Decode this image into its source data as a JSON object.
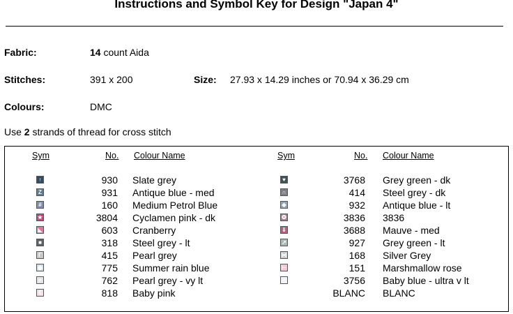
{
  "title": "Instructions and Symbol Key for Design \"Japan 4\"",
  "fabric": {
    "label": "Fabric:",
    "count": "14",
    "rest": "count Aida"
  },
  "stitches": {
    "label": "Stitches:",
    "value": "391 x 200"
  },
  "size": {
    "label": "Size:",
    "value": "27.93 x 14.29 inches or 70.94 x 36.29 cm"
  },
  "colours": {
    "label": "Colours:",
    "value": "DMC"
  },
  "instruction": {
    "prefix": "Use",
    "strands": "2",
    "suffix": "strands of thread for cross stitch"
  },
  "key": {
    "headers": {
      "sym": "Sym",
      "no": "No.",
      "name": "Colour Name"
    },
    "left": [
      {
        "no": "930",
        "name": "Slate grey",
        "icon": "slate-grey-symbol",
        "bg": "#2f4e66",
        "glyph": "↑"
      },
      {
        "no": "931",
        "name": "Antique blue -  med",
        "icon": "antique-blue-symbol",
        "bg": "#5b7d98",
        "glyph": "Z"
      },
      {
        "no": "160",
        "name": "Medium Petrol Blue",
        "icon": "petrol-blue-symbol",
        "bg": "#7f8eb3",
        "glyph": "#"
      },
      {
        "no": "3804",
        "name": "Cyclamen pink -  dk",
        "icon": "cyclamen-pink-symbol",
        "bg": "#d23f7a",
        "glyph": "★"
      },
      {
        "no": "603",
        "name": "Cranberry",
        "icon": "cranberry-symbol",
        "bg": "#e7709d",
        "glyph": "◣"
      },
      {
        "no": "318",
        "name": "Steel grey -  lt",
        "icon": "steel-grey-lt-symbol",
        "bg": "#5d6268",
        "glyph": "■"
      },
      {
        "no": "415",
        "name": "Pearl grey",
        "icon": "pearl-grey-symbol",
        "bg": "#c8c8c8",
        "glyph": "Γ"
      },
      {
        "no": "775",
        "name": "Summer rain blue",
        "icon": "summer-rain-symbol",
        "bg": "#cfe1ef",
        "glyph": "◉"
      },
      {
        "no": "762",
        "name": "Pearl grey -  vy lt",
        "icon": "pearl-grey-vylt-symbol",
        "bg": "#e3e3e8",
        "glyph": "≠"
      },
      {
        "no": "818",
        "name": "Baby pink",
        "icon": "baby-pink-symbol",
        "bg": "#f7dde4",
        "glyph": "€"
      }
    ],
    "right": [
      {
        "no": "3768",
        "name": "Grey green -  dk",
        "icon": "grey-green-dk-symbol",
        "bg": "#3c5357",
        "glyph": "♥"
      },
      {
        "no": "414",
        "name": "Steel grey -  dk",
        "icon": "steel-grey-dk-symbol",
        "bg": "#7c7f84",
        "glyph": "∩"
      },
      {
        "no": "932",
        "name": "Antique blue -  lt",
        "icon": "antique-blue-lt-symbol",
        "bg": "#8fa5bd",
        "glyph": "◆"
      },
      {
        "no": "3836",
        "name": "3836",
        "icon": "symbol-3836",
        "bg": "#a67a92",
        "glyph": "❂"
      },
      {
        "no": "3688",
        "name": "Mauve -  med",
        "icon": "mauve-symbol",
        "bg": "#c4587a",
        "glyph": "⇓"
      },
      {
        "no": "927",
        "name": "Grey green -  lt",
        "icon": "grey-green-lt-symbol",
        "bg": "#a7b8b6",
        "glyph": "↗"
      },
      {
        "no": "168",
        "name": "Silver Grey",
        "icon": "silver-grey-symbol",
        "bg": "#c9ccd0",
        "glyph": "⋈"
      },
      {
        "no": "151",
        "name": "Marshmallow rose",
        "icon": "marshmallow-symbol",
        "bg": "#f2c6d2",
        "glyph": "⊢"
      },
      {
        "no": "3756",
        "name": "Baby blue -  ultra v lt",
        "icon": "baby-blue-symbol",
        "bg": "#eef4f8",
        "glyph": ">"
      },
      {
        "no": "BLANC",
        "name": "BLANC",
        "icon": "blanc-symbol",
        "bg": "#ffffff",
        "glyph": ""
      }
    ]
  }
}
